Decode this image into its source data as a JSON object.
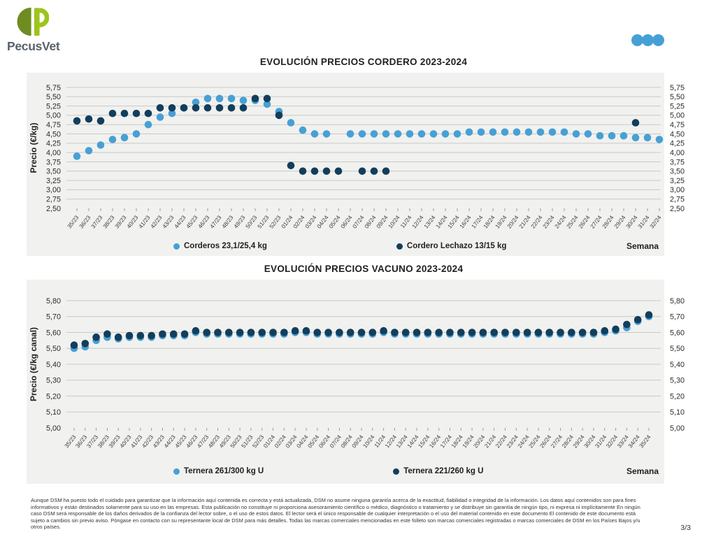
{
  "header": {
    "brand": "PecusVet",
    "dots_color": "#47a0d5",
    "logo_colors": {
      "dark_green": "#6f8c20",
      "lime_green": "#9dc41d",
      "text": "#57616c"
    }
  },
  "colors": {
    "panel_bg": "#f1f1ef",
    "gridline": "#c9c9c7",
    "tick": "#9a9a98",
    "axis_text": "#2b2b2b",
    "light_blue": "#47a0d5",
    "dark_navy": "#123e5c"
  },
  "chart_data": [
    {
      "type": "scatter",
      "title": "EVOLUCIÓN PRECIOS CORDERO 2023-2024",
      "xlabel": "Semana",
      "ylabel": "Precio (€/kg)",
      "ylim": [
        2.5,
        5.75
      ],
      "ystep": 0.25,
      "grid": true,
      "legend_position": "bottom",
      "x": [
        "35/23",
        "36/23",
        "37/23",
        "38/23",
        "39/23",
        "40/23",
        "41/23",
        "42/23",
        "43/23",
        "44/23",
        "45/23",
        "46/23",
        "47/23",
        "48/23",
        "49/23",
        "50/23",
        "51/23",
        "52/23",
        "01/24",
        "02/24",
        "03/24",
        "04/24",
        "05/24",
        "06/24",
        "07/24",
        "08/24",
        "09/24",
        "10/24",
        "11/24",
        "12/24",
        "13/24",
        "14/24",
        "15/24",
        "16/24",
        "17/24",
        "18/24",
        "19/24",
        "20/24",
        "21/24",
        "22/24",
        "23/24",
        "24/24",
        "25/24",
        "26/24",
        "27/24",
        "28/24",
        "29/24",
        "30/24",
        "31/24",
        "32/24"
      ],
      "series": [
        {
          "name": "Corderos 23,1/25,4 kg",
          "color": "#47a0d5",
          "values": [
            3.9,
            4.05,
            4.2,
            4.35,
            4.4,
            4.5,
            4.75,
            4.95,
            5.05,
            5.2,
            5.35,
            5.45,
            5.45,
            5.45,
            5.4,
            5.4,
            5.3,
            5.1,
            4.8,
            4.6,
            4.5,
            4.5,
            null,
            4.5,
            4.5,
            4.5,
            4.5,
            4.5,
            4.5,
            4.5,
            4.5,
            4.5,
            4.5,
            4.55,
            4.55,
            4.55,
            4.55,
            4.55,
            4.55,
            4.55,
            4.55,
            4.55,
            4.5,
            4.5,
            4.45,
            4.45,
            4.45,
            4.4,
            4.4,
            4.35
          ]
        },
        {
          "name": "Cordero Lechazo 13/15 kg",
          "color": "#123e5c",
          "values": [
            4.85,
            4.9,
            4.85,
            5.05,
            5.05,
            5.05,
            5.05,
            5.2,
            5.2,
            5.2,
            5.2,
            5.2,
            5.2,
            5.2,
            5.2,
            5.45,
            5.45,
            5.0,
            3.65,
            3.5,
            3.5,
            3.5,
            3.5,
            null,
            3.5,
            3.5,
            3.5,
            null,
            null,
            null,
            null,
            null,
            null,
            null,
            null,
            null,
            null,
            null,
            null,
            null,
            null,
            null,
            null,
            null,
            null,
            null,
            null,
            4.8,
            null,
            null
          ]
        }
      ]
    },
    {
      "type": "scatter",
      "title": "EVOLUCIÓN PRECIOS VACUNO 2023-2024",
      "xlabel": "Semana",
      "ylabel": "Precio (€/kg canal)",
      "ylim": [
        5.0,
        5.8
      ],
      "ystep": 0.1,
      "grid": true,
      "legend_position": "bottom",
      "x": [
        "35/23",
        "36/23",
        "37/23",
        "38/23",
        "39/23",
        "40/23",
        "41/23",
        "42/23",
        "43/23",
        "44/23",
        "45/23",
        "46/23",
        "47/23",
        "48/23",
        "49/23",
        "50/23",
        "51/23",
        "52/23",
        "01/24",
        "02/24",
        "03/24",
        "04/24",
        "05/24",
        "06/24",
        "07/24",
        "08/24",
        "09/24",
        "10/24",
        "11/24",
        "12/24",
        "13/24",
        "14/24",
        "15/24",
        "16/24",
        "17/24",
        "18/24",
        "19/24",
        "20/24",
        "21/24",
        "22/24",
        "23/24",
        "24/24",
        "25/24",
        "26/24",
        "27/24",
        "28/24",
        "29/24",
        "30/24",
        "31/24",
        "32/24",
        "33/24",
        "34/24",
        "35/24"
      ],
      "series": [
        {
          "name": "Ternera 261/300 kg U",
          "color": "#47a0d5",
          "values": [
            5.5,
            5.51,
            5.55,
            5.57,
            5.56,
            5.57,
            5.57,
            5.57,
            5.58,
            5.58,
            5.58,
            5.6,
            5.59,
            5.59,
            5.59,
            5.59,
            5.59,
            5.59,
            5.59,
            5.59,
            5.6,
            5.6,
            5.59,
            5.59,
            5.59,
            5.59,
            5.59,
            5.59,
            5.6,
            5.59,
            5.59,
            5.59,
            5.59,
            5.59,
            5.59,
            5.59,
            5.59,
            5.59,
            5.59,
            5.59,
            5.59,
            5.59,
            5.59,
            5.59,
            5.59,
            5.59,
            5.59,
            5.59,
            5.6,
            5.61,
            5.63,
            5.67,
            5.7
          ]
        },
        {
          "name": "Ternera 221/260 kg U",
          "color": "#123e5c",
          "values": [
            5.52,
            5.53,
            5.57,
            5.59,
            5.57,
            5.58,
            5.58,
            5.58,
            5.59,
            5.59,
            5.59,
            5.61,
            5.6,
            5.6,
            5.6,
            5.6,
            5.6,
            5.6,
            5.6,
            5.6,
            5.61,
            5.61,
            5.6,
            5.6,
            5.6,
            5.6,
            5.6,
            5.6,
            5.61,
            5.6,
            5.6,
            5.6,
            5.6,
            5.6,
            5.6,
            5.6,
            5.6,
            5.6,
            5.6,
            5.6,
            5.6,
            5.6,
            5.6,
            5.6,
            5.6,
            5.6,
            5.6,
            5.6,
            5.61,
            5.62,
            5.65,
            5.68,
            5.71
          ]
        }
      ]
    }
  ],
  "footer": {
    "disclaimer": "Aunque DSM ha puesto todo el cuidado para garantizar que la información aquí contenida es correcta y está actualizada, DSM no asume ninguna garantía acerca de la exactitud, fiabilidad o integridad de la información. Los datos aquí contenidos son para fines informativos y están destinados solamente para su uso en las empresas. Esta publicación no constituye ni proporciona asesoramiento científico o médico, diagnóstico o tratamiento y se distribuye sin garantía de ningún tipo, ni expresa ni implícitamente En ningún caso DSM será responsable de los daños derivados de la confianza del lector sobre, o el uso de estos datos. El lector será el único responsable de cualquier interpretación o el uso del material contenido en este documento El contenido de este documento está sujeto a cambios sin previo aviso. Póngase en contacto con su representante local de DSM para más detalles. Todas las marcas comerciales mencionadas en este folleto son marcas comerciales registradas o marcas comerciales de DSM en los Países Bajos y/u otros países.",
    "page_number": "3/3"
  }
}
